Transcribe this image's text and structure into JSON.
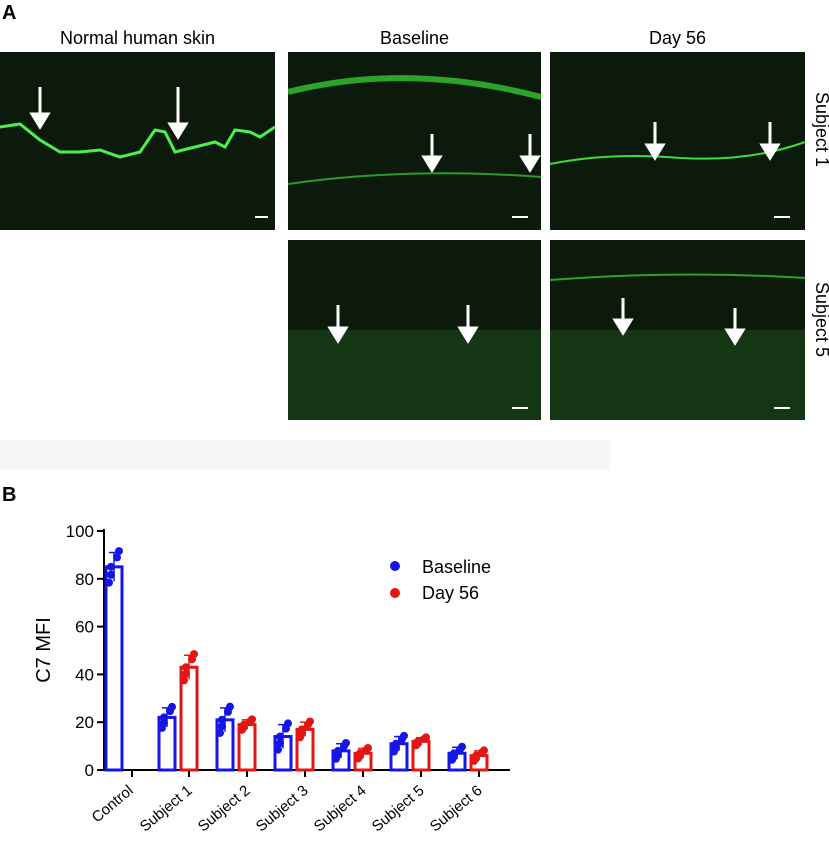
{
  "panel_a": {
    "label": "A",
    "columns": [
      "Normal human skin",
      "Baseline",
      "Day 56"
    ],
    "rows": [
      "Subject 1",
      "Subject 5"
    ],
    "colors": {
      "stain": "#3adf3a",
      "background": "#0c1a0c",
      "arrow": "#ffffff"
    }
  },
  "panel_b": {
    "label": "B"
  },
  "chart_data": {
    "type": "bar",
    "ylabel": "C7 MFI",
    "xlabel": "",
    "ylim": [
      0,
      100
    ],
    "yticks": [
      0,
      20,
      40,
      60,
      80,
      100
    ],
    "categories": [
      "Control",
      "Subject 1",
      "Subject 2",
      "Subject 3",
      "Subject 4",
      "Subject 5",
      "Subject 6"
    ],
    "legend_position": "top-right",
    "series": [
      {
        "name": "Baseline",
        "color": "#1515e6",
        "values": [
          85,
          22,
          21,
          14,
          8,
          11,
          7
        ],
        "errors": [
          6,
          4,
          5,
          5,
          3,
          3,
          2.5
        ]
      },
      {
        "name": "Day 56",
        "color": "#e61515",
        "values": [
          null,
          43,
          19,
          17,
          7,
          12,
          6
        ],
        "errors": [
          null,
          5,
          2,
          3,
          2,
          1.5,
          2
        ]
      }
    ]
  }
}
